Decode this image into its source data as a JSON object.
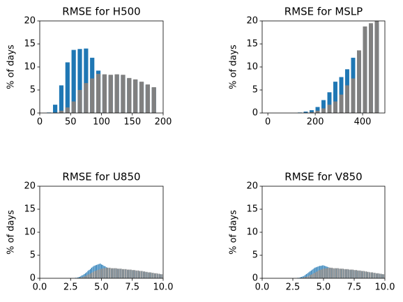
{
  "chart_data": [
    {
      "type": "bar",
      "title": "RMSE for H500",
      "ylabel": "% of days",
      "x": [
        15,
        25,
        35,
        45,
        55,
        65,
        75,
        85,
        95,
        105,
        115,
        125,
        135,
        145,
        155,
        165,
        175,
        185
      ],
      "series": [
        {
          "color": "#1f77b4",
          "values": [
            0.1,
            1.8,
            6.0,
            11.0,
            13.7,
            13.9,
            14.0,
            12.0,
            9.2,
            8.3,
            8.2,
            8.3,
            8.2,
            7.5,
            7.2,
            6.7,
            6.1,
            5.5
          ]
        },
        {
          "color": "#808080",
          "values": [
            0,
            0.1,
            0.5,
            1.2,
            2.5,
            5.0,
            6.5,
            7.5,
            8.5,
            8.4,
            8.3,
            8.4,
            8.3,
            7.6,
            7.3,
            6.8,
            6.2,
            5.6
          ]
        }
      ],
      "xlim": [
        0,
        200
      ],
      "xticks": [
        0,
        50,
        100,
        150,
        200
      ],
      "ylim": [
        0,
        20
      ],
      "yticks": [
        0,
        5,
        10,
        15,
        20
      ]
    },
    {
      "type": "bar",
      "title": "RMSE for MSLP",
      "ylabel": "% of days",
      "x": [
        135,
        160,
        185,
        210,
        235,
        260,
        285,
        310,
        335,
        360,
        385,
        410,
        435,
        460
      ],
      "series": [
        {
          "color": "#1f77b4",
          "values": [
            0.1,
            0.3,
            0.6,
            1.3,
            2.8,
            4.5,
            6.8,
            7.8,
            9.5,
            12.0,
            13.0,
            18.0,
            19.0,
            19.5
          ]
        },
        {
          "color": "#808080",
          "values": [
            0,
            0.1,
            0.2,
            0.5,
            1.0,
            1.8,
            2.5,
            4.0,
            6.0,
            7.5,
            13.6,
            18.8,
            19.5,
            20.3
          ]
        }
      ],
      "xlim": [
        -24,
        494
      ],
      "xticks": [
        0,
        200,
        400
      ],
      "ylim": [
        0,
        20
      ],
      "yticks": [
        0,
        5,
        10,
        15,
        20
      ]
    },
    {
      "type": "bar",
      "title": "RMSE for U850",
      "ylabel": "% of days",
      "x": [
        2.8,
        2.9,
        3.0,
        3.1,
        3.2,
        3.3,
        3.4,
        3.5,
        3.6,
        3.7,
        3.8,
        3.9,
        4.0,
        4.1,
        4.2,
        4.3,
        4.4,
        4.5,
        4.6,
        4.7,
        4.8,
        4.9,
        5.0,
        5.1,
        5.2,
        5.3,
        5.4,
        5.5,
        5.6,
        5.7,
        5.8,
        5.9,
        6.0,
        6.1,
        6.2,
        6.3,
        6.4,
        6.5,
        6.6,
        6.7,
        6.8,
        6.9,
        7.0,
        7.1,
        7.2,
        7.3,
        7.4,
        7.5,
        7.6,
        7.7,
        7.8,
        7.9,
        8.0,
        8.1,
        8.2,
        8.3,
        8.4,
        8.5,
        8.6,
        8.7,
        8.8,
        8.9,
        9.0,
        9.1,
        9.2,
        9.3,
        9.4,
        9.5,
        9.6,
        9.7,
        9.8,
        9.9
      ],
      "series": [
        {
          "color": "#1f77b4",
          "values": [
            0,
            0.1,
            0.1,
            0.2,
            0.3,
            0.4,
            0.6,
            0.7,
            0.9,
            1.1,
            1.3,
            1.6,
            1.8,
            2.0,
            2.3,
            2.5,
            2.7,
            2.8,
            2.9,
            3.0,
            3.1,
            3.2,
            3.0,
            2.9,
            2.7,
            2.6,
            2.4,
            2.3,
            2.2,
            2.1,
            2.1,
            2.0,
            2.1,
            2.1,
            2.1,
            2.0,
            2.0,
            2.0,
            2.0,
            1.9,
            1.9,
            1.9,
            1.9,
            1.8,
            1.8,
            1.8,
            1.8,
            1.7,
            1.7,
            1.7,
            1.6,
            1.6,
            1.6,
            1.5,
            1.5,
            1.5,
            1.4,
            1.4,
            1.3,
            1.3,
            1.2,
            1.2,
            1.2,
            1.1,
            1.1,
            1.0,
            1.0,
            1.0,
            0.9,
            0.9,
            0.8,
            0.8
          ]
        },
        {
          "color": "#808080",
          "values": [
            0,
            0,
            0,
            0.1,
            0.1,
            0.2,
            0.2,
            0.3,
            0.4,
            0.5,
            0.6,
            0.8,
            0.9,
            1.0,
            1.2,
            1.3,
            1.5,
            1.6,
            1.7,
            1.8,
            1.9,
            2.0,
            2.1,
            2.1,
            2.2,
            2.2,
            2.3,
            2.3,
            2.3,
            2.3,
            2.2,
            2.2,
            2.2,
            2.2,
            2.2,
            2.1,
            2.1,
            2.1,
            2.1,
            2.0,
            2.0,
            2.0,
            2.0,
            1.9,
            1.9,
            1.9,
            1.9,
            1.8,
            1.8,
            1.8,
            1.7,
            1.7,
            1.7,
            1.6,
            1.6,
            1.6,
            1.5,
            1.5,
            1.4,
            1.4,
            1.3,
            1.3,
            1.3,
            1.2,
            1.2,
            1.1,
            1.1,
            1.1,
            1.0,
            1.0,
            0.9,
            0.9
          ]
        }
      ],
      "xlim": [
        0,
        10
      ],
      "xticks": [
        {
          "value": 0,
          "label": "0.0"
        },
        2.5,
        {
          "value": 5,
          "label": "5.0"
        },
        7.5,
        {
          "value": 10,
          "label": "10.0"
        }
      ],
      "ylim": [
        0,
        20
      ],
      "yticks": [
        0,
        5,
        10,
        15,
        20
      ]
    },
    {
      "type": "bar",
      "title": "RMSE for V850",
      "ylabel": "% of days",
      "x": [
        2.8,
        2.9,
        3.0,
        3.1,
        3.2,
        3.3,
        3.4,
        3.5,
        3.6,
        3.7,
        3.8,
        3.9,
        4.0,
        4.1,
        4.2,
        4.3,
        4.4,
        4.5,
        4.6,
        4.7,
        4.8,
        4.9,
        5.0,
        5.1,
        5.2,
        5.3,
        5.4,
        5.5,
        5.6,
        5.7,
        5.8,
        5.9,
        6.0,
        6.1,
        6.2,
        6.3,
        6.4,
        6.5,
        6.6,
        6.7,
        6.8,
        6.9,
        7.0,
        7.1,
        7.2,
        7.3,
        7.4,
        7.5,
        7.6,
        7.7,
        7.8,
        7.9,
        8.0,
        8.1,
        8.2,
        8.3,
        8.4,
        8.5,
        8.6,
        8.7,
        8.8,
        8.9,
        9.0,
        9.1,
        9.2,
        9.3,
        9.4,
        9.5,
        9.6,
        9.7,
        9.8,
        9.9
      ],
      "series": [
        {
          "color": "#1f77b4",
          "values": [
            0,
            0.1,
            0.1,
            0.2,
            0.3,
            0.4,
            0.5,
            0.7,
            0.9,
            1.1,
            1.3,
            1.5,
            1.7,
            1.9,
            2.1,
            2.3,
            2.4,
            2.5,
            2.6,
            2.7,
            2.7,
            2.8,
            2.8,
            2.7,
            2.6,
            2.5,
            2.4,
            2.3,
            2.2,
            2.1,
            2.1,
            2.0,
            2.1,
            2.1,
            2.1,
            2.0,
            2.0,
            2.0,
            2.0,
            1.9,
            1.9,
            1.9,
            1.9,
            1.8,
            1.8,
            1.8,
            1.8,
            1.7,
            1.7,
            1.7,
            1.6,
            1.6,
            1.6,
            1.5,
            1.5,
            1.5,
            1.4,
            1.4,
            1.3,
            1.3,
            1.2,
            1.2,
            1.2,
            1.1,
            1.1,
            1.0,
            1.0,
            1.0,
            0.9,
            0.9,
            0.8,
            0.8
          ]
        },
        {
          "color": "#808080",
          "values": [
            0,
            0,
            0,
            0,
            0.1,
            0.1,
            0.2,
            0.3,
            0.3,
            0.4,
            0.5,
            0.7,
            0.8,
            0.9,
            1.1,
            1.2,
            1.4,
            1.5,
            1.7,
            1.8,
            1.9,
            2.0,
            2.1,
            2.1,
            2.2,
            2.2,
            2.3,
            2.3,
            2.3,
            2.3,
            2.2,
            2.2,
            2.2,
            2.2,
            2.2,
            2.1,
            2.1,
            2.1,
            2.1,
            2.0,
            2.0,
            2.0,
            2.0,
            1.9,
            1.9,
            1.9,
            1.9,
            1.8,
            1.8,
            1.8,
            1.7,
            1.7,
            1.7,
            1.6,
            1.6,
            1.6,
            1.5,
            1.5,
            1.4,
            1.4,
            1.3,
            1.3,
            1.3,
            1.2,
            1.2,
            1.1,
            1.1,
            1.1,
            1.0,
            1.0,
            0.9,
            0.9
          ]
        }
      ],
      "xlim": [
        0,
        10
      ],
      "xticks": [
        {
          "value": 0,
          "label": "0.0"
        },
        2.5,
        {
          "value": 5,
          "label": "5.0"
        },
        7.5,
        {
          "value": 10,
          "label": "10.0"
        }
      ],
      "ylim": [
        0,
        20
      ],
      "yticks": [
        0,
        5,
        10,
        15,
        20
      ]
    }
  ]
}
